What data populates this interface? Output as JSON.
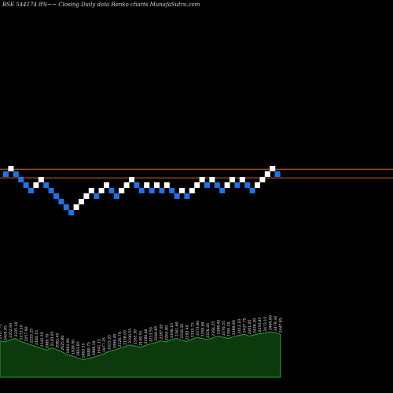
{
  "page": {
    "title": "BSE 544174  8%~~  Closing Daily data  Renko  charts MunafaSutra.com"
  },
  "colors": {
    "background": "#000000",
    "up_brick": "#ffffff",
    "down_brick": "#1e73e8",
    "guide_line": "#e06a1a",
    "volume_fill": "#0c3a0c",
    "volume_border": "#2fa02f",
    "label_text": "#e6e6e6"
  },
  "chart_data": {
    "type": "renko",
    "brick_size_note": "8%",
    "y_min": -12,
    "y_max": 2,
    "reference_levels": [
      0.9,
      -0.7
    ],
    "bricks": [
      {
        "dir": "down",
        "level": 0
      },
      {
        "dir": "up",
        "level": 1
      },
      {
        "dir": "down",
        "level": 0
      },
      {
        "dir": "down",
        "level": -1
      },
      {
        "dir": "down",
        "level": -2
      },
      {
        "dir": "down",
        "level": -3
      },
      {
        "dir": "up",
        "level": -2
      },
      {
        "dir": "up",
        "level": -1
      },
      {
        "dir": "down",
        "level": -2
      },
      {
        "dir": "down",
        "level": -3
      },
      {
        "dir": "down",
        "level": -4
      },
      {
        "dir": "down",
        "level": -5
      },
      {
        "dir": "down",
        "level": -6
      },
      {
        "dir": "down",
        "level": -7
      },
      {
        "dir": "up",
        "level": -6
      },
      {
        "dir": "up",
        "level": -5
      },
      {
        "dir": "up",
        "level": -4
      },
      {
        "dir": "up",
        "level": -3
      },
      {
        "dir": "down",
        "level": -4
      },
      {
        "dir": "up",
        "level": -3
      },
      {
        "dir": "up",
        "level": -2
      },
      {
        "dir": "down",
        "level": -3
      },
      {
        "dir": "down",
        "level": -4
      },
      {
        "dir": "up",
        "level": -3
      },
      {
        "dir": "up",
        "level": -2
      },
      {
        "dir": "up",
        "level": -1
      },
      {
        "dir": "down",
        "level": -2
      },
      {
        "dir": "down",
        "level": -3
      },
      {
        "dir": "up",
        "level": -2
      },
      {
        "dir": "down",
        "level": -3
      },
      {
        "dir": "up",
        "level": -2
      },
      {
        "dir": "down",
        "level": -3
      },
      {
        "dir": "up",
        "level": -2
      },
      {
        "dir": "down",
        "level": -3
      },
      {
        "dir": "down",
        "level": -4
      },
      {
        "dir": "up",
        "level": -3
      },
      {
        "dir": "down",
        "level": -4
      },
      {
        "dir": "up",
        "level": -3
      },
      {
        "dir": "up",
        "level": -2
      },
      {
        "dir": "up",
        "level": -1
      },
      {
        "dir": "down",
        "level": -2
      },
      {
        "dir": "up",
        "level": -1
      },
      {
        "dir": "down",
        "level": -2
      },
      {
        "dir": "down",
        "level": -3
      },
      {
        "dir": "up",
        "level": -2
      },
      {
        "dir": "up",
        "level": -1
      },
      {
        "dir": "down",
        "level": -2
      },
      {
        "dir": "up",
        "level": -1
      },
      {
        "dir": "down",
        "level": -2
      },
      {
        "dir": "down",
        "level": -3
      },
      {
        "dir": "up",
        "level": -2
      },
      {
        "dir": "up",
        "level": -1
      },
      {
        "dir": "up",
        "level": 0
      },
      {
        "dir": "up",
        "level": 1
      },
      {
        "dir": "down",
        "level": 0
      }
    ],
    "volume": [
      62,
      60,
      64,
      66,
      61,
      58,
      55,
      52,
      49,
      46,
      50,
      47,
      43,
      38,
      36,
      33,
      30,
      32,
      34,
      37,
      40,
      44,
      46,
      49,
      52,
      55,
      53,
      51,
      54,
      57,
      59,
      62,
      60,
      64,
      66,
      63,
      61,
      65,
      68,
      66,
      64,
      67,
      70,
      68,
      66,
      69,
      71,
      73,
      70,
      72,
      74,
      75,
      77,
      76,
      73
    ],
    "volume_labels": [
      "2327.75",
      "2405.05",
      "2352.60",
      "2335.10",
      "2273.10",
      "2257.90",
      "2225.25",
      "2184.15",
      "2142.50",
      "2089.70",
      "2120.05",
      "2083.45",
      "2025.80",
      "1963.00",
      "1928.00",
      "1903.85",
      "1863.55",
      "1880.75",
      "1908.10",
      "1941.15",
      "1977.25",
      "2023.35",
      "2066.45",
      "2120.70",
      "2158.05",
      "2190.55",
      "2165.30",
      "2140.55",
      "2180.40",
      "2213.50",
      "2240.85",
      "2287.05",
      "2265.80",
      "2306.15",
      "2341.60",
      "2318.35",
      "2292.40",
      "2335.75",
      "2372.80",
      "2350.60",
      "2326.45",
      "2364.25",
      "2398.45",
      "2376.55",
      "2350.20",
      "2389.90",
      "2412.10",
      "2437.75",
      "2401.05",
      "2426.30",
      "2450.85",
      "2472.15",
      "2490.60",
      "2479.30",
      "2447.85"
    ]
  }
}
